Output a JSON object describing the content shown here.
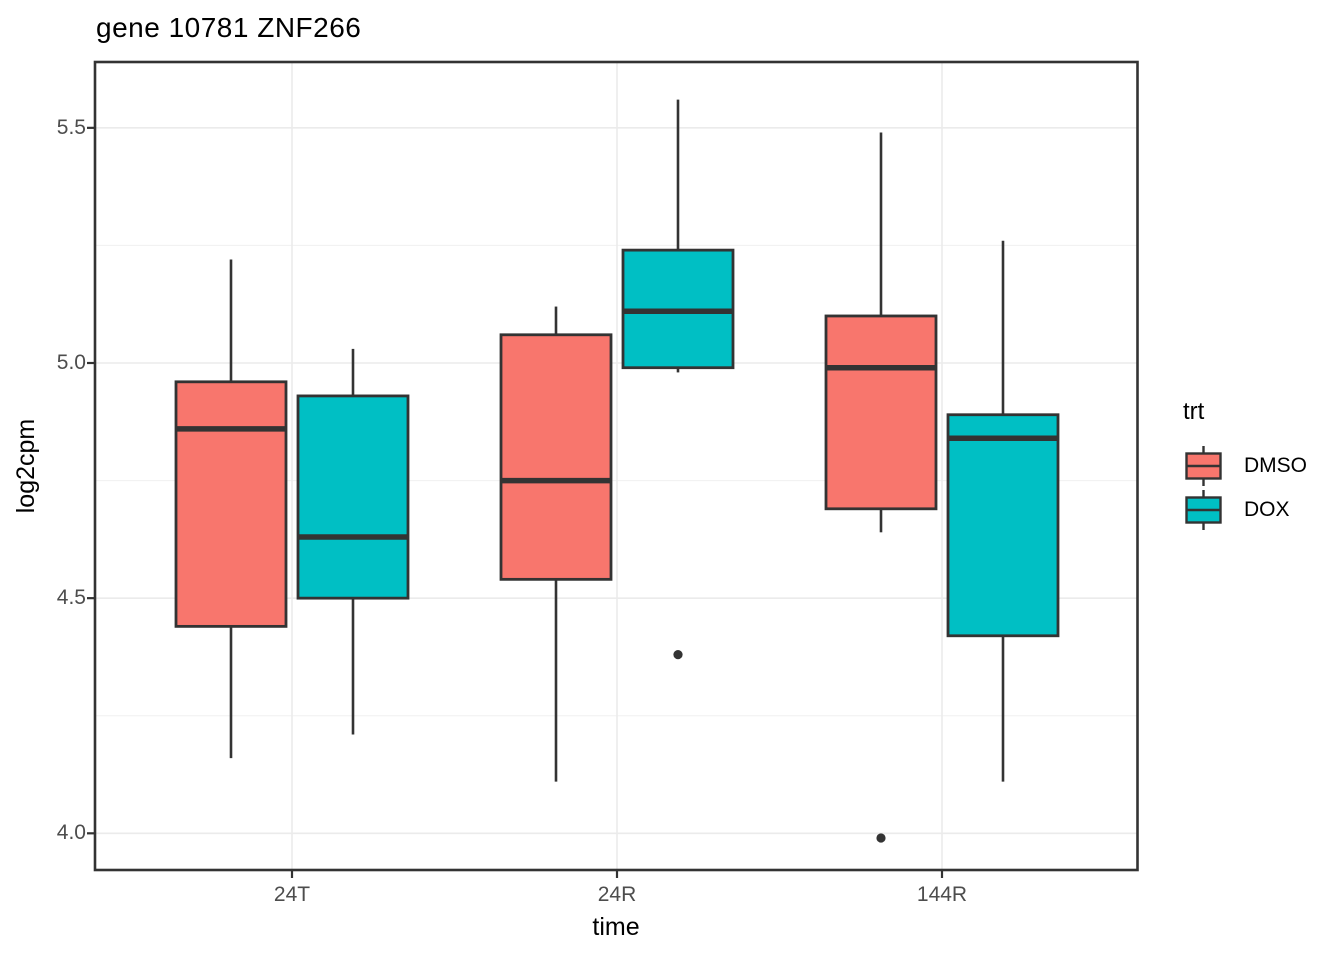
{
  "chart_data": {
    "type": "boxplot",
    "title": "gene 10781 ZNF266",
    "xlabel": "time",
    "ylabel": "log2cpm",
    "categories": [
      "24T",
      "24R",
      "144R"
    ],
    "y_ticks": [
      4.0,
      4.5,
      5.0,
      5.5
    ],
    "y_tick_labels": [
      "4.0",
      "4.5",
      "5.0",
      "5.5"
    ],
    "y_minor": [
      4.25,
      4.75,
      5.25
    ],
    "ylim": [
      3.922,
      5.64
    ],
    "grid": true,
    "legend_position": "right",
    "colors": {
      "dmso_fill": "#F8766D",
      "dox_fill": "#00BFC4",
      "stroke": "#333333",
      "grid_major": "#EBEBEB",
      "grid_minor": "#F0F0F0",
      "tick_text": "#4d4d4d"
    },
    "legend": {
      "title": "trt",
      "entries": [
        {
          "label": "DMSO",
          "color": "#F8766D"
        },
        {
          "label": "DOX",
          "color": "#00BFC4"
        }
      ]
    },
    "series": [
      {
        "name": "DMSO",
        "color": "#F8766D",
        "boxes": [
          {
            "category": "24T",
            "min": 4.16,
            "q1": 4.44,
            "median": 4.86,
            "q3": 4.96,
            "max": 5.22,
            "outliers": []
          },
          {
            "category": "24R",
            "min": 4.11,
            "q1": 4.54,
            "median": 4.75,
            "q3": 5.06,
            "max": 5.12,
            "outliers": []
          },
          {
            "category": "144R",
            "min": 4.64,
            "q1": 4.69,
            "median": 4.99,
            "q3": 5.1,
            "max": 5.49,
            "outliers": [
              3.99
            ]
          }
        ]
      },
      {
        "name": "DOX",
        "color": "#00BFC4",
        "boxes": [
          {
            "category": "24T",
            "min": 4.21,
            "q1": 4.5,
            "median": 4.63,
            "q3": 4.93,
            "max": 5.03,
            "outliers": []
          },
          {
            "category": "24R",
            "min": 4.98,
            "q1": 4.99,
            "median": 5.11,
            "q3": 5.24,
            "max": 5.56,
            "outliers": [
              4.38
            ]
          },
          {
            "category": "144R",
            "min": 4.11,
            "q1": 4.42,
            "median": 4.84,
            "q3": 4.89,
            "max": 5.26,
            "outliers": []
          }
        ]
      }
    ]
  }
}
